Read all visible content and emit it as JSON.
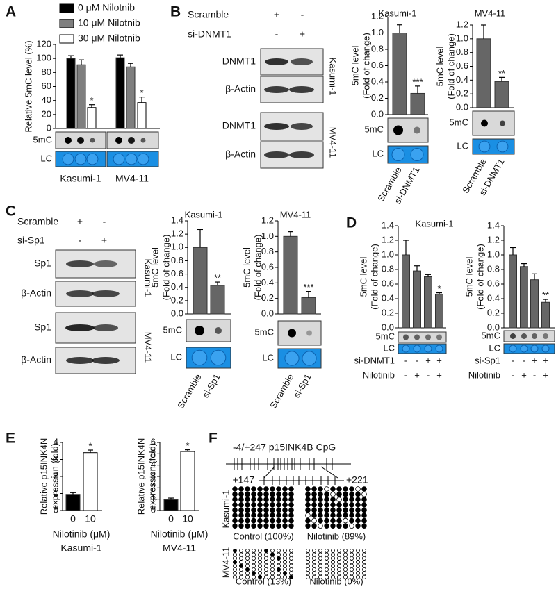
{
  "panel_letters": [
    "A",
    "B",
    "C",
    "D",
    "E",
    "F"
  ],
  "chart_data": [
    {
      "type": "bar",
      "ylabel": [
        "Relative 5mC level (%)"
      ],
      "categories": [
        "Kasumi-1",
        "MV4-11"
      ],
      "series": [
        {
          "name": "0 μM Nilotnib",
          "color": "#000000",
          "values": [
            100,
            101
          ],
          "errors": [
            4,
            4
          ]
        },
        {
          "name": "10 μM Nilotnib",
          "color": "#7f7f7f",
          "values": [
            91,
            88
          ],
          "errors": [
            7,
            5
          ]
        },
        {
          "name": "30 μM Nilotnib",
          "color": "#ffffff",
          "values": [
            30,
            37
          ],
          "errors": [
            4,
            8
          ],
          "significance": [
            "*",
            "*"
          ]
        }
      ],
      "ylim": [
        0,
        120
      ],
      "yticks": [
        0,
        20,
        40,
        60,
        80,
        100,
        120
      ],
      "blot_labels": [
        "5mC",
        "LC"
      ]
    },
    {
      "type": "bar",
      "title": "Kasumi-1",
      "ylabel": [
        "5mC level",
        "(Fold of change)"
      ],
      "categories": [
        "Scramble",
        "si-DNMT1"
      ],
      "values": [
        1.0,
        0.26
      ],
      "errors": [
        0.1,
        0.09
      ],
      "significance": [
        null,
        "***"
      ],
      "color": "#666666",
      "ylim": [
        0,
        1.2
      ],
      "yticks": [
        {
          "value": 0,
          "label": "0.0"
        },
        0.2,
        0.4,
        0.6,
        0.8,
        {
          "value": 1,
          "label": "1.0"
        },
        1.2
      ],
      "blot_labels": [
        "5mC",
        "LC"
      ]
    },
    {
      "type": "bar",
      "title": "MV4-11",
      "ylabel": [
        "5mC level",
        "(Fold of change)"
      ],
      "categories": [
        "Scramble",
        "si-DNMT1"
      ],
      "values": [
        1.0,
        0.38
      ],
      "errors": [
        0.2,
        0.06
      ],
      "significance": [
        null,
        "**"
      ],
      "color": "#666666",
      "ylim": [
        0,
        1.2
      ],
      "yticks": [
        {
          "value": 0,
          "label": "0.0"
        },
        0.2,
        0.4,
        0.6,
        0.8,
        {
          "value": 1,
          "label": "1.0"
        },
        1.2
      ],
      "blot_labels": [
        "5mC",
        "LC"
      ]
    },
    {
      "type": "bar",
      "title": "Kasumi-1",
      "ylabel": [
        "5mC level",
        "(Fold of change)"
      ],
      "categories": [
        "Scramble",
        "si-Sp1"
      ],
      "values": [
        1.0,
        0.43
      ],
      "errors": [
        0.27,
        0.05
      ],
      "significance": [
        null,
        "**"
      ],
      "color": "#666666",
      "ylim": [
        0,
        1.4
      ],
      "yticks": [
        {
          "value": 0,
          "label": "0.0"
        },
        0.2,
        0.4,
        0.6,
        0.8,
        {
          "value": 1,
          "label": "1.0"
        },
        1.2,
        1.4
      ],
      "blot_labels": [
        "5mC",
        "LC"
      ]
    },
    {
      "type": "bar",
      "title": "MV4-11",
      "ylabel": [
        "5mC level",
        "(Fold of change)"
      ],
      "categories": [
        "Scramble",
        "si-Sp1"
      ],
      "values": [
        1.0,
        0.21
      ],
      "errors": [
        0.06,
        0.08
      ],
      "significance": [
        null,
        "***"
      ],
      "color": "#666666",
      "ylim": [
        0,
        1.2
      ],
      "yticks": [
        {
          "value": 0,
          "label": "0.0"
        },
        0.2,
        0.4,
        0.6,
        0.8,
        {
          "value": 1,
          "label": "1.0"
        },
        1.2
      ],
      "blot_labels": [
        "5mC",
        "LC"
      ]
    },
    {
      "type": "bar",
      "title": "Kasumi-1",
      "ylabel": [
        "5mC level",
        "(Fold of change)"
      ],
      "values": [
        1.0,
        0.78,
        0.7,
        0.46
      ],
      "errors": [
        0.2,
        0.07,
        0.03,
        0.02
      ],
      "significance": [
        null,
        null,
        null,
        "*"
      ],
      "color": "#666666",
      "ylim": [
        0,
        1.4
      ],
      "yticks": [
        {
          "value": 0,
          "label": "0.0"
        },
        0.2,
        0.4,
        0.6,
        0.8,
        {
          "value": 1,
          "label": "1.0"
        },
        1.2,
        1.4
      ],
      "blot_labels": [
        "5mC",
        "LC"
      ],
      "conditions": [
        {
          "name": "si-DNMT1",
          "signs": [
            "-",
            "-",
            "+",
            "+"
          ]
        },
        {
          "name": "Nilotinib",
          "signs": [
            "-",
            "+",
            "-",
            "+"
          ]
        }
      ]
    },
    {
      "type": "bar",
      "ylabel": [
        "5mC level",
        "(Fold of change)"
      ],
      "values": [
        1.0,
        0.84,
        0.66,
        0.35
      ],
      "errors": [
        0.1,
        0.04,
        0.08,
        0.04
      ],
      "significance": [
        null,
        null,
        null,
        "**"
      ],
      "color": "#666666",
      "ylim": [
        0,
        1.4
      ],
      "yticks": [
        {
          "value": 0,
          "label": "0.0"
        },
        0.2,
        0.4,
        0.6,
        0.8,
        {
          "value": 1,
          "label": "1.0"
        },
        1.2,
        1.4
      ],
      "blot_labels": [
        "5mC",
        "LC"
      ],
      "conditions": [
        {
          "name": "si-Sp1",
          "signs": [
            "-",
            "-",
            "+",
            "+"
          ]
        },
        {
          "name": "Nilotinib",
          "signs": [
            "-",
            "+",
            "-",
            "+"
          ]
        }
      ]
    },
    {
      "type": "bar",
      "ylabel": [
        "Relative p15INK4N",
        "expression (fold)"
      ],
      "categories": [
        "0",
        "10"
      ],
      "xlabel": "Nilotinib (μM)",
      "subtitle": "Kasumi-1",
      "values": [
        0.95,
        3.4
      ],
      "errors": [
        0.1,
        0.15
      ],
      "significance": [
        null,
        "*"
      ],
      "colors": [
        "#000000",
        "#ffffff"
      ],
      "ylim": [
        0,
        4
      ],
      "yticks": [
        0,
        1,
        2,
        3,
        4
      ]
    },
    {
      "type": "bar",
      "ylabel": [
        "Relative p15INK4N",
        "expression (fold)"
      ],
      "categories": [
        "0",
        "10"
      ],
      "xlabel": "Nilotinib (μM)",
      "subtitle": "MV4-11",
      "values": [
        0.95,
        5.2
      ],
      "errors": [
        0.15,
        0.15
      ],
      "significance": [
        null,
        "*"
      ],
      "colors": [
        "#000000",
        "#ffffff"
      ],
      "ylim": [
        0,
        6
      ],
      "yticks": [
        0,
        1,
        2,
        3,
        4,
        5,
        6
      ]
    }
  ],
  "panel_B": {
    "rows": [
      {
        "name": "Scramble",
        "signs": [
          "+",
          "-"
        ]
      },
      {
        "name": "si-DNMT1",
        "signs": [
          "-",
          "+"
        ]
      }
    ],
    "blot_labels": [
      "DNMT1",
      "β-Actin",
      "DNMT1",
      "β-Actin"
    ],
    "cell_lines": [
      "Kasumi-1",
      "MV4-11"
    ]
  },
  "panel_C": {
    "rows": [
      {
        "name": "Scramble",
        "signs": [
          "+",
          "-"
        ]
      },
      {
        "name": "si-Sp1",
        "signs": [
          "-",
          "+"
        ]
      }
    ],
    "blot_labels": [
      "Sp1",
      "β-Actin",
      "Sp1",
      "β-Actin"
    ],
    "cell_lines": [
      "Kasumi-1",
      "MV4-11"
    ]
  },
  "panel_F": {
    "title": "-4/+247 p15INK4B CpG",
    "start_label": "+147",
    "end_label": "+221",
    "groups": [
      {
        "cell_line": "Kasumi-1",
        "samples": [
          {
            "label": "Control (100%)",
            "methylated_percent": 100
          },
          {
            "label": "Nilotinib (89%)",
            "methylated_percent": 89
          }
        ]
      },
      {
        "cell_line": "MV4-11",
        "samples": [
          {
            "label": "Control (13%)",
            "methylated_percent": 13
          },
          {
            "label": "Nilotinib (0%)",
            "methylated_percent": 0
          }
        ]
      }
    ]
  }
}
